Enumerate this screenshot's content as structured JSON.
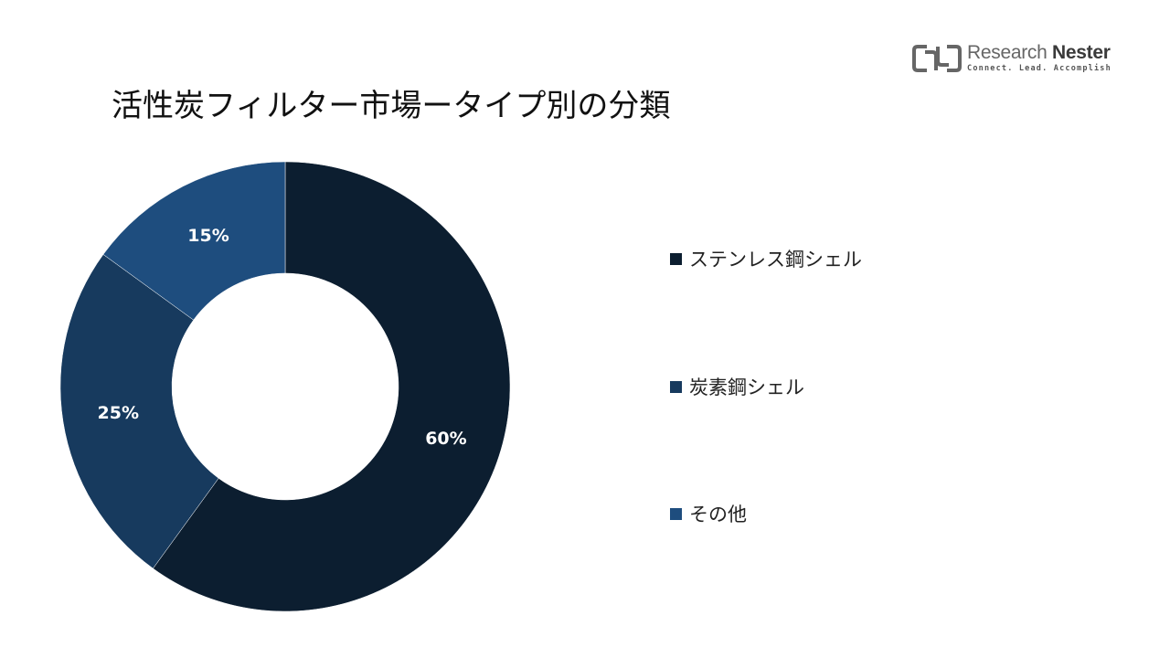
{
  "header": {
    "title": "活性炭フィルター市場ータイプ別の分類"
  },
  "logo": {
    "name_part1": "Research",
    "name_part2": "Nester",
    "tagline": "Connect. Lead. Accomplish",
    "icon": "research-nester-logo-icon"
  },
  "chart_data": {
    "type": "pie",
    "variant": "donut",
    "title": "活性炭フィルター市場ータイプ別の分類",
    "categories": [
      "ステンレス鋼シェル",
      "炭素鋼シェル",
      "その他"
    ],
    "values": [
      60,
      25,
      15
    ],
    "labels": [
      "60%",
      "25%",
      "15%"
    ],
    "colors": [
      "#0c1e30",
      "#173a5e",
      "#1e4d7e"
    ],
    "legend_position": "right"
  },
  "legend": {
    "items": [
      {
        "label": "ステンレス鋼シェル",
        "color": "#0c1e30"
      },
      {
        "label": "炭素鋼シェル",
        "color": "#173a5e"
      },
      {
        "label": "その他",
        "color": "#1e4d7e"
      }
    ]
  }
}
